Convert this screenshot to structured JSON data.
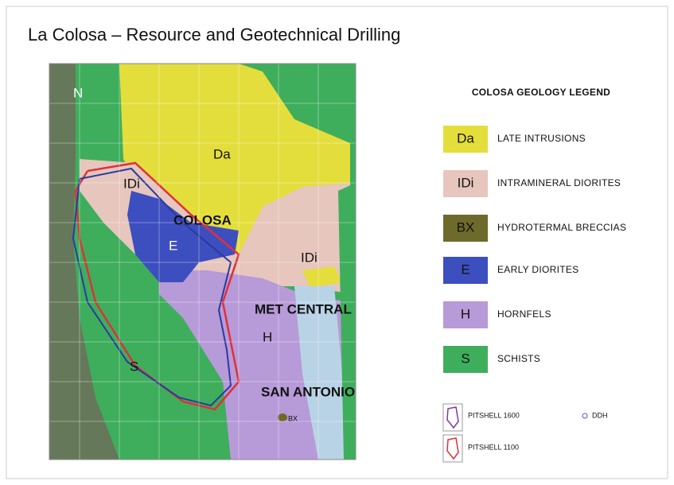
{
  "title": "La Colosa – Resource and Geotechnical Drilling",
  "map": {
    "labels": [
      "Da",
      "IDi",
      "COLOSA",
      "E",
      "IDi",
      "MET CENTRAL",
      "H",
      "S",
      "SAN ANTONIO",
      "BX"
    ],
    "north": "N"
  },
  "legend": {
    "title": "COLOSA GEOLOGY LEGEND",
    "items": [
      {
        "code": "Da",
        "label": "LATE INTRUSIONS",
        "color": "#e4de3c"
      },
      {
        "code": "IDi",
        "label": "INTRAMINERAL DIORITES",
        "color": "#e6c6bd"
      },
      {
        "code": "BX",
        "label": "HYDROTERMAL BRECCIAS",
        "color": "#6e6a2c"
      },
      {
        "code": "E",
        "label": "EARLY DIORITES",
        "color": "#3d4fbf"
      },
      {
        "code": "H",
        "label": "HORNFELS",
        "color": "#b79ad8"
      },
      {
        "code": "S",
        "label": "SCHISTS",
        "color": "#3eae5c"
      }
    ],
    "symbols": [
      "PITSHELL 1600",
      "DDH",
      "PITSHELL 1100"
    ]
  }
}
